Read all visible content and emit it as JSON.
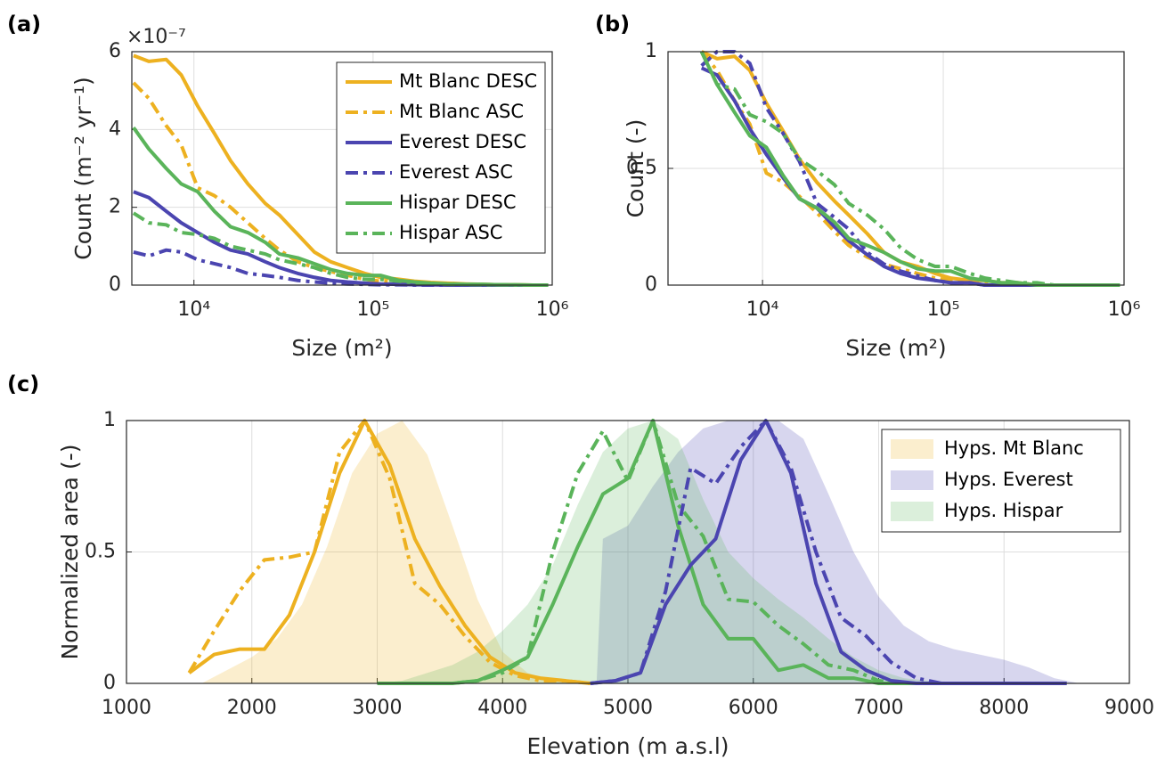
{
  "chart_data": [
    {
      "type": "line",
      "panel_label": "(a)",
      "log_x": true,
      "grid": true,
      "legend": "upper right",
      "y_multiplier": "×10⁻⁷",
      "xlabel": "Size (m²)",
      "ylabel": "Count (m⁻² yr⁻¹)",
      "xlim": [
        4500,
        1000000
      ],
      "ylim": [
        0,
        6
      ],
      "xticks": [
        {
          "value": 10000,
          "label": "10⁴"
        },
        {
          "value": 100000,
          "label": "10⁵"
        },
        {
          "value": 1000000,
          "label": "10⁶"
        }
      ],
      "yticks": [
        0,
        2,
        4,
        6
      ],
      "x": [
        4600,
        5600,
        7000,
        8500,
        10500,
        13000,
        16000,
        20000,
        25000,
        30000,
        38000,
        47000,
        58000,
        72000,
        90000,
        110000,
        140000,
        170000,
        210000,
        260000,
        330000,
        410000,
        500000,
        630000,
        780000,
        950000
      ],
      "series": [
        {
          "name": "Mt Blanc DESC",
          "color": "#EDB120",
          "style": "solid",
          "values": [
            5.9,
            5.75,
            5.8,
            5.4,
            4.6,
            3.9,
            3.2,
            2.6,
            2.1,
            1.8,
            1.3,
            0.85,
            0.6,
            0.45,
            0.3,
            0.2,
            0.15,
            0.1,
            0.07,
            0.05,
            0.03,
            0.02,
            0.01,
            0.01,
            0,
            0
          ]
        },
        {
          "name": "Mt Blanc ASC",
          "color": "#EDB120",
          "style": "dashdot",
          "values": [
            5.2,
            4.8,
            4.1,
            3.6,
            2.5,
            2.3,
            2.0,
            1.6,
            1.2,
            0.9,
            0.6,
            0.45,
            0.35,
            0.25,
            0.15,
            0.1,
            0.07,
            0.05,
            0.03,
            0.02,
            0.01,
            0.01,
            0,
            0,
            0,
            0
          ]
        },
        {
          "name": "Everest DESC",
          "color": "#4B45B0",
          "style": "solid",
          "values": [
            2.4,
            2.25,
            1.9,
            1.6,
            1.35,
            1.1,
            0.9,
            0.8,
            0.6,
            0.45,
            0.3,
            0.2,
            0.12,
            0.08,
            0.05,
            0.03,
            0.02,
            0.01,
            0.01,
            0,
            0,
            0,
            0,
            0,
            0,
            0
          ]
        },
        {
          "name": "Everest ASC",
          "color": "#4B45B0",
          "style": "dashdot",
          "values": [
            0.85,
            0.75,
            0.9,
            0.85,
            0.65,
            0.55,
            0.45,
            0.3,
            0.25,
            0.2,
            0.12,
            0.08,
            0.05,
            0.03,
            0.02,
            0.01,
            0.01,
            0,
            0,
            0,
            0,
            0,
            0,
            0,
            0,
            0
          ]
        },
        {
          "name": "Hispar DESC",
          "color": "#5AB45A",
          "style": "solid",
          "values": [
            4.05,
            3.5,
            3.0,
            2.6,
            2.4,
            1.9,
            1.5,
            1.35,
            1.1,
            0.8,
            0.7,
            0.55,
            0.4,
            0.3,
            0.25,
            0.25,
            0.12,
            0.08,
            0.05,
            0.03,
            0.02,
            0.02,
            0.01,
            0.01,
            0,
            0
          ]
        },
        {
          "name": "Hispar ASC",
          "color": "#5AB45A",
          "style": "dashdot",
          "values": [
            1.85,
            1.6,
            1.55,
            1.35,
            1.3,
            1.2,
            1.0,
            0.9,
            0.8,
            0.65,
            0.55,
            0.45,
            0.3,
            0.2,
            0.15,
            0.15,
            0.1,
            0.06,
            0.04,
            0.02,
            0.02,
            0.01,
            0.01,
            0,
            0,
            0
          ]
        }
      ]
    },
    {
      "type": "line",
      "panel_label": "(b)",
      "log_x": true,
      "grid": true,
      "xlabel": "Size (m²)",
      "ylabel": "Count (-)",
      "xlim": [
        3000,
        1000000
      ],
      "ylim": [
        0,
        1
      ],
      "xticks": [
        {
          "value": 10000,
          "label": "10⁴"
        },
        {
          "value": 100000,
          "label": "10⁵"
        },
        {
          "value": 1000000,
          "label": "10⁶"
        }
      ],
      "yticks": [
        0,
        0.5,
        1
      ],
      "x": [
        4600,
        5600,
        7000,
        8500,
        10500,
        13000,
        16000,
        20000,
        25000,
        30000,
        38000,
        47000,
        58000,
        72000,
        90000,
        110000,
        140000,
        170000,
        210000,
        260000,
        330000,
        410000,
        500000,
        630000,
        780000,
        950000
      ],
      "series": [
        {
          "color": "#EDB120",
          "style": "solid",
          "values": [
            1,
            0.97,
            0.98,
            0.92,
            0.78,
            0.66,
            0.54,
            0.44,
            0.36,
            0.3,
            0.22,
            0.14,
            0.1,
            0.08,
            0.05,
            0.03,
            0.02,
            0.02,
            0.01,
            0.01,
            0,
            0,
            0,
            0,
            0,
            0
          ]
        },
        {
          "color": "#EDB120",
          "style": "dashdot",
          "values": [
            1,
            0.92,
            0.79,
            0.69,
            0.48,
            0.44,
            0.38,
            0.31,
            0.23,
            0.17,
            0.12,
            0.09,
            0.07,
            0.05,
            0.03,
            0.02,
            0.01,
            0.01,
            0,
            0,
            0,
            0,
            0,
            0,
            0,
            0
          ]
        },
        {
          "color": "#4B45B0",
          "style": "solid",
          "values": [
            0.93,
            0.9,
            0.79,
            0.67,
            0.56,
            0.46,
            0.37,
            0.33,
            0.25,
            0.19,
            0.13,
            0.08,
            0.05,
            0.03,
            0.02,
            0.01,
            0.01,
            0,
            0,
            0,
            0,
            0,
            0,
            0,
            0,
            0
          ]
        },
        {
          "color": "#4B45B0",
          "style": "dashdot",
          "values": [
            0.94,
            1,
            1,
            0.95,
            0.76,
            0.65,
            0.53,
            0.35,
            0.29,
            0.24,
            0.14,
            0.09,
            0.06,
            0.04,
            0.02,
            0.01,
            0.01,
            0,
            0,
            0,
            0,
            0,
            0,
            0,
            0,
            0
          ]
        },
        {
          "color": "#5AB45A",
          "style": "solid",
          "values": [
            1,
            0.86,
            0.74,
            0.64,
            0.59,
            0.47,
            0.37,
            0.33,
            0.27,
            0.2,
            0.17,
            0.14,
            0.1,
            0.07,
            0.06,
            0.06,
            0.03,
            0.02,
            0.01,
            0.01,
            0,
            0,
            0,
            0,
            0,
            0
          ]
        },
        {
          "color": "#5AB45A",
          "style": "dashdot",
          "values": [
            1,
            0.86,
            0.84,
            0.73,
            0.7,
            0.65,
            0.54,
            0.49,
            0.43,
            0.35,
            0.3,
            0.24,
            0.16,
            0.11,
            0.08,
            0.08,
            0.05,
            0.03,
            0.02,
            0.01,
            0.01,
            0,
            0,
            0,
            0,
            0
          ]
        }
      ]
    },
    {
      "type": "line",
      "panel_label": "(c)",
      "log_x": false,
      "grid": true,
      "legend": "upper right",
      "xlabel": "Elevation (m a.s.l)",
      "ylabel": "Normalized area (-)",
      "xlim": [
        1000,
        9000
      ],
      "ylim": [
        0,
        1
      ],
      "xticks": [
        1000,
        2000,
        3000,
        4000,
        5000,
        6000,
        7000,
        8000,
        9000
      ],
      "yticks": [
        0,
        0.5,
        1
      ],
      "series": [
        {
          "name": "Hyps. Mt Blanc",
          "color": "#EDB120",
          "style": "area",
          "x": [
            1600,
            1800,
            2000,
            2200,
            2400,
            2600,
            2800,
            3000,
            3200,
            3400,
            3600,
            3800,
            4000,
            4200,
            4400,
            4600
          ],
          "values": [
            0,
            0.05,
            0.1,
            0.17,
            0.3,
            0.52,
            0.8,
            0.95,
            1,
            0.87,
            0.6,
            0.32,
            0.12,
            0.04,
            0.01,
            0
          ]
        },
        {
          "name": "Hyps. Everest",
          "color": "#4B45B0",
          "style": "area",
          "x": [
            4750,
            4800,
            5000,
            5200,
            5400,
            5600,
            5800,
            6000,
            6200,
            6400,
            6600,
            6800,
            7000,
            7200,
            7400,
            7600,
            7800,
            8000,
            8200,
            8400,
            8600
          ],
          "values": [
            0,
            0.55,
            0.6,
            0.75,
            0.88,
            0.97,
            1,
            1,
            1,
            0.93,
            0.72,
            0.5,
            0.33,
            0.22,
            0.16,
            0.13,
            0.11,
            0.09,
            0.06,
            0.02,
            0
          ]
        },
        {
          "name": "Hyps. Hispar",
          "color": "#5AB45A",
          "style": "area",
          "x": [
            3000,
            3200,
            3400,
            3600,
            3800,
            4000,
            4200,
            4400,
            4600,
            4800,
            5000,
            5200,
            5400,
            5600,
            5800,
            6000,
            6200,
            6400,
            6600,
            6800,
            7000,
            7200,
            7400,
            7600,
            7800
          ],
          "values": [
            0,
            0.01,
            0.04,
            0.07,
            0.12,
            0.2,
            0.3,
            0.45,
            0.68,
            0.88,
            0.97,
            1,
            0.93,
            0.7,
            0.5,
            0.4,
            0.32,
            0.25,
            0.17,
            0.1,
            0.05,
            0.02,
            0.01,
            0.005,
            0
          ]
        },
        {
          "color": "#EDB120",
          "style": "solid",
          "x": [
            1500,
            1700,
            1900,
            2100,
            2300,
            2500,
            2700,
            2900,
            3100,
            3300,
            3500,
            3700,
            3900,
            4100,
            4300,
            4500,
            4700
          ],
          "values": [
            0.04,
            0.11,
            0.13,
            0.13,
            0.26,
            0.5,
            0.8,
            1,
            0.83,
            0.55,
            0.37,
            0.22,
            0.1,
            0.04,
            0.02,
            0.01,
            0
          ]
        },
        {
          "color": "#EDB120",
          "style": "dashdot",
          "x": [
            1500,
            1700,
            1900,
            2100,
            2300,
            2500,
            2700,
            2900,
            3100,
            3300,
            3500,
            3700,
            3900,
            4100,
            4300,
            4500,
            4700
          ],
          "values": [
            0.04,
            0.2,
            0.35,
            0.47,
            0.48,
            0.5,
            0.88,
            1,
            0.78,
            0.38,
            0.3,
            0.18,
            0.08,
            0.03,
            0.01,
            0.01,
            0
          ]
        },
        {
          "color": "#5AB45A",
          "style": "solid",
          "x": [
            3000,
            3200,
            3400,
            3600,
            3800,
            4000,
            4200,
            4400,
            4600,
            4800,
            5000,
            5200,
            5400,
            5600,
            5800,
            6000,
            6200,
            6400,
            6600,
            6800,
            7000,
            7200,
            7400,
            7600,
            7800
          ],
          "values": [
            0,
            0,
            0,
            0,
            0.01,
            0.05,
            0.1,
            0.3,
            0.52,
            0.72,
            0.78,
            1,
            0.6,
            0.3,
            0.17,
            0.17,
            0.05,
            0.07,
            0.02,
            0.02,
            0,
            0,
            0,
            0,
            0
          ]
        },
        {
          "color": "#5AB45A",
          "style": "dashdot",
          "x": [
            3000,
            3200,
            3400,
            3600,
            3800,
            4000,
            4200,
            4400,
            4600,
            4800,
            5000,
            5200,
            5400,
            5600,
            5800,
            6000,
            6200,
            6400,
            6600,
            6800,
            7000,
            7200,
            7400,
            7600,
            7800
          ],
          "values": [
            0,
            0,
            0,
            0,
            0.01,
            0.04,
            0.1,
            0.5,
            0.8,
            0.96,
            0.77,
            1,
            0.68,
            0.56,
            0.32,
            0.31,
            0.22,
            0.15,
            0.07,
            0.05,
            0.01,
            0,
            0,
            0,
            0
          ]
        },
        {
          "color": "#4B45B0",
          "style": "solid",
          "x": [
            4700,
            4900,
            5100,
            5300,
            5500,
            5700,
            5900,
            6100,
            6300,
            6500,
            6700,
            6900,
            7100,
            7300,
            7500,
            7700,
            7900,
            8100,
            8300,
            8500
          ],
          "values": [
            0,
            0.01,
            0.04,
            0.3,
            0.45,
            0.55,
            0.85,
            1,
            0.8,
            0.38,
            0.12,
            0.05,
            0.01,
            0,
            0,
            0,
            0,
            0,
            0,
            0
          ]
        },
        {
          "color": "#4B45B0",
          "style": "dashdot",
          "x": [
            4700,
            4900,
            5100,
            5300,
            5500,
            5700,
            5900,
            6100,
            6300,
            6500,
            6700,
            6900,
            7100,
            7300,
            7500,
            7700,
            7900,
            8100,
            8300,
            8500
          ],
          "values": [
            0,
            0.01,
            0.04,
            0.35,
            0.82,
            0.76,
            0.9,
            1,
            0.82,
            0.5,
            0.25,
            0.18,
            0.08,
            0.02,
            0,
            0,
            0,
            0,
            0,
            0
          ]
        }
      ]
    }
  ]
}
